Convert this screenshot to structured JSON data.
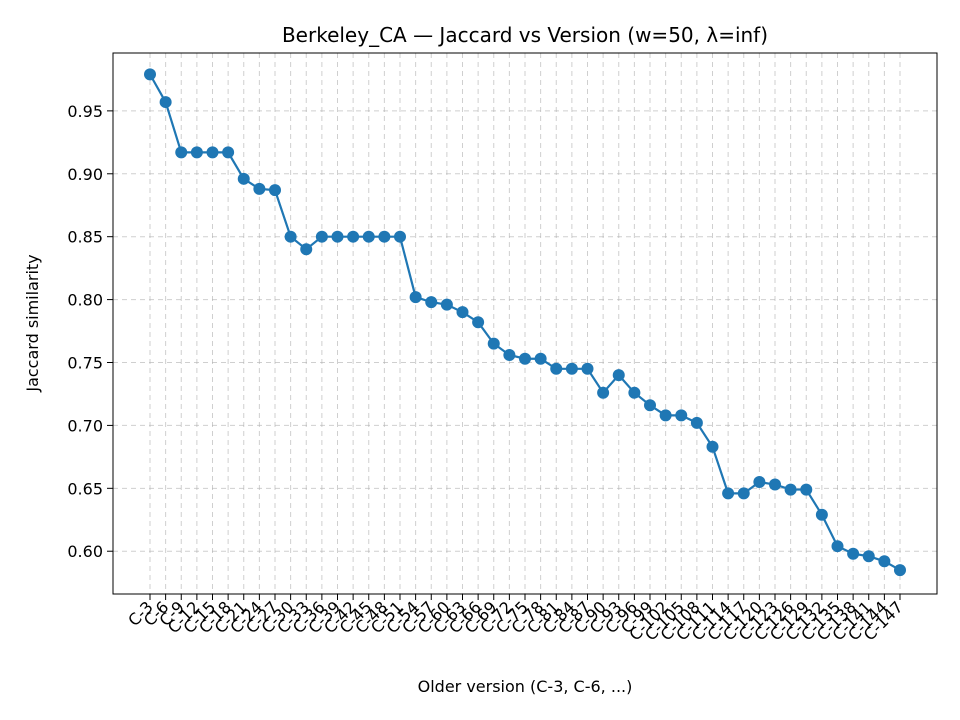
{
  "chart_data": {
    "type": "line",
    "title": "Berkeley_CA — Jaccard vs Version (w=50, λ=inf)",
    "xlabel": "Older version (C-3, C-6, ...)",
    "ylabel": "Jaccard similarity",
    "ylim": [
      0.566,
      0.996
    ],
    "yticks": [
      "0.60",
      "0.65",
      "0.70",
      "0.75",
      "0.80",
      "0.85",
      "0.90",
      "0.95"
    ],
    "grid": true,
    "color": "#1f77b4",
    "categories": [
      "C-3",
      "C-6",
      "C-9",
      "C-12",
      "C-15",
      "C-18",
      "C-21",
      "C-24",
      "C-27",
      "C-30",
      "C-33",
      "C-36",
      "C-39",
      "C-42",
      "C-45",
      "C-48",
      "C-51",
      "C-54",
      "C-57",
      "C-60",
      "C-63",
      "C-66",
      "C-69",
      "C-72",
      "C-75",
      "C-78",
      "C-81",
      "C-84",
      "C-87",
      "C-90",
      "C-93",
      "C-96",
      "C-99",
      "C-102",
      "C-105",
      "C-108",
      "C-111",
      "C-114",
      "C-117",
      "C-120",
      "C-123",
      "C-126",
      "C-129",
      "C-132",
      "C-135",
      "C-138",
      "C-141",
      "C-144",
      "C-147"
    ],
    "values": [
      0.979,
      0.957,
      0.917,
      0.917,
      0.917,
      0.917,
      0.896,
      0.888,
      0.887,
      0.85,
      0.84,
      0.85,
      0.85,
      0.85,
      0.85,
      0.85,
      0.85,
      0.802,
      0.798,
      0.796,
      0.79,
      0.782,
      0.765,
      0.756,
      0.753,
      0.753,
      0.745,
      0.745,
      0.745,
      0.726,
      0.74,
      0.726,
      0.716,
      0.708,
      0.708,
      0.702,
      0.683,
      0.646,
      0.646,
      0.655,
      0.653,
      0.649,
      0.649,
      0.629,
      0.604,
      0.598,
      0.596,
      0.592,
      0.585
    ]
  }
}
